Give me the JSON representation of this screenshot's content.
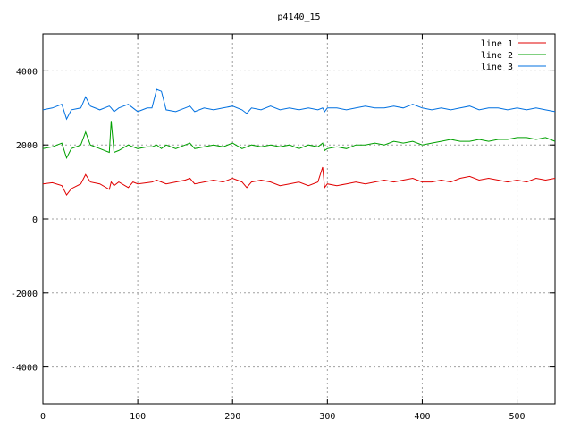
{
  "chart_data": {
    "type": "line",
    "title": "p4140_15",
    "xlabel": "",
    "ylabel": "",
    "xlim": [
      0,
      540
    ],
    "ylim": [
      -5000,
      5000
    ],
    "x_ticks": [
      0,
      100,
      200,
      300,
      400,
      500
    ],
    "y_ticks": [
      -4000,
      -2000,
      0,
      2000,
      4000
    ],
    "grid": true,
    "legend_position": "top-right",
    "x": [
      0,
      10,
      20,
      25,
      30,
      40,
      45,
      50,
      60,
      70,
      72,
      75,
      80,
      90,
      95,
      100,
      110,
      115,
      120,
      125,
      130,
      140,
      150,
      155,
      160,
      170,
      180,
      190,
      200,
      210,
      215,
      220,
      230,
      240,
      250,
      260,
      270,
      280,
      290,
      295,
      297,
      300,
      310,
      320,
      330,
      340,
      350,
      360,
      370,
      380,
      390,
      400,
      410,
      420,
      430,
      440,
      450,
      460,
      470,
      480,
      490,
      500,
      510,
      520,
      530,
      540
    ],
    "series": [
      {
        "name": "line 1",
        "color": "#e00000",
        "values": [
          950,
          980,
          900,
          650,
          820,
          950,
          1200,
          1000,
          950,
          800,
          1000,
          900,
          1000,
          850,
          1000,
          950,
          980,
          1000,
          1050,
          1000,
          950,
          1000,
          1050,
          1100,
          950,
          1000,
          1050,
          1000,
          1100,
          1000,
          850,
          1000,
          1050,
          1000,
          900,
          950,
          1000,
          900,
          1000,
          1400,
          850,
          950,
          900,
          950,
          1000,
          950,
          1000,
          1050,
          1000,
          1050,
          1100,
          1000,
          1000,
          1050,
          1000,
          1100,
          1150,
          1050,
          1100,
          1050,
          1000,
          1050,
          1000,
          1100,
          1050,
          1100
        ]
      },
      {
        "name": "line 2",
        "color": "#00a000",
        "values": [
          1900,
          1950,
          2050,
          1650,
          1900,
          2000,
          2350,
          2000,
          1900,
          1800,
          2650,
          1800,
          1850,
          2000,
          1950,
          1900,
          1950,
          1950,
          2000,
          1900,
          2000,
          1900,
          2000,
          2050,
          1900,
          1950,
          2000,
          1950,
          2050,
          1900,
          1950,
          2000,
          1950,
          2000,
          1950,
          2000,
          1900,
          2000,
          1950,
          2050,
          1850,
          1900,
          1950,
          1900,
          2000,
          2000,
          2050,
          2000,
          2100,
          2050,
          2100,
          2000,
          2050,
          2100,
          2150,
          2100,
          2100,
          2150,
          2100,
          2150,
          2150,
          2200,
          2200,
          2150,
          2200,
          2100
        ]
      },
      {
        "name": "line 3",
        "color": "#0070e0",
        "values": [
          2950,
          3000,
          3100,
          2700,
          2950,
          3000,
          3300,
          3050,
          2950,
          3050,
          3000,
          2900,
          3000,
          3100,
          3000,
          2900,
          3000,
          3000,
          3500,
          3450,
          2950,
          2900,
          3000,
          3050,
          2900,
          3000,
          2950,
          3000,
          3050,
          2950,
          2850,
          3000,
          2950,
          3050,
          2950,
          3000,
          2950,
          3000,
          2950,
          3000,
          2900,
          3000,
          3000,
          2950,
          3000,
          3050,
          3000,
          3000,
          3050,
          3000,
          3100,
          3000,
          2950,
          3000,
          2950,
          3000,
          3050,
          2950,
          3000,
          3000,
          2950,
          3000,
          2950,
          3000,
          2950,
          2900
        ]
      }
    ]
  }
}
